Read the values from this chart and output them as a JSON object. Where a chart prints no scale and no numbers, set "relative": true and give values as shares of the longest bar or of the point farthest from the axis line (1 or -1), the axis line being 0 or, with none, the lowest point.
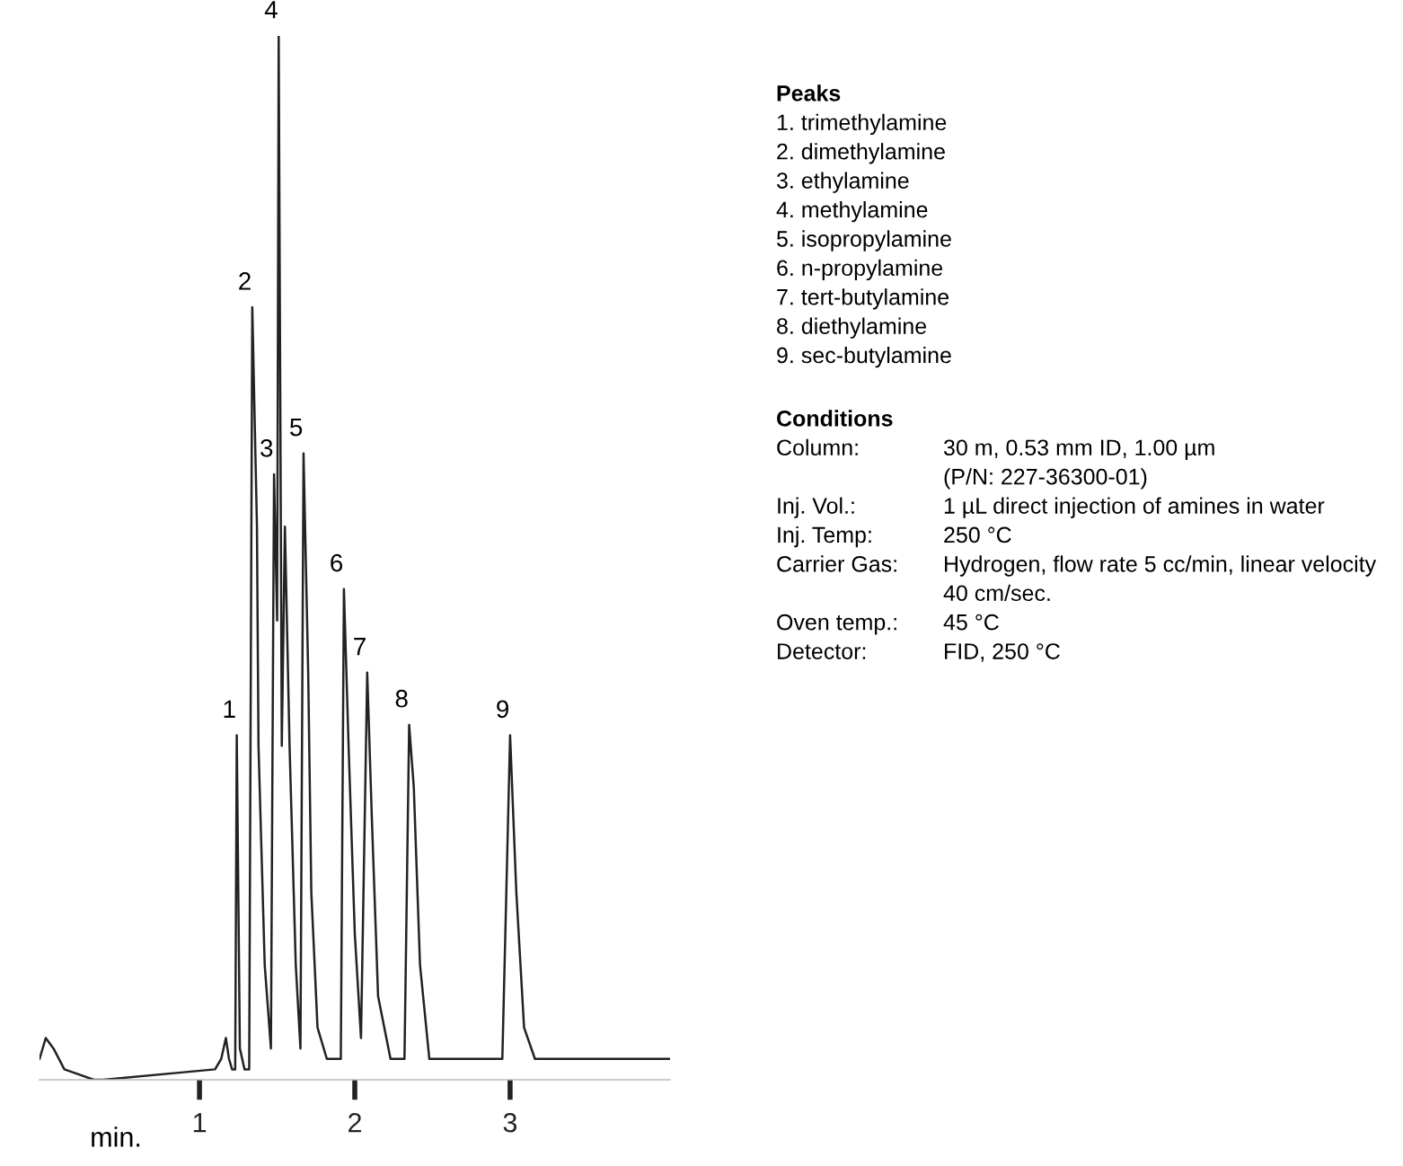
{
  "chart_data": {
    "type": "line",
    "relative": true,
    "xlabel": "min.",
    "xlim": [
      -0.03,
      4.03
    ],
    "xticks": [
      1,
      2,
      3
    ],
    "grid": false,
    "legend": false,
    "marker": "none",
    "line_style": "solid",
    "series": [
      {
        "color": "#222222",
        "x": [
          -0.03,
          0.01,
          0.06,
          0.13,
          0.32,
          0.38,
          1.1,
          1.14,
          1.17,
          1.19,
          1.21,
          1.23,
          1.24,
          1.26,
          1.29,
          1.32,
          1.34,
          1.37,
          1.38,
          1.42,
          1.46,
          1.48,
          1.5,
          1.51,
          1.53,
          1.55,
          1.58,
          1.62,
          1.65,
          1.67,
          1.7,
          1.72,
          1.76,
          1.82,
          1.91,
          1.93,
          1.96,
          2.0,
          2.04,
          2.08,
          2.11,
          2.15,
          2.23,
          2.32,
          2.35,
          2.38,
          2.42,
          2.48,
          2.59,
          2.95,
          3.0,
          3.04,
          3.09,
          3.16,
          4.03
        ],
        "values": [
          0.02,
          0.04,
          0.03,
          0.01,
          0.0,
          0.0,
          0.01,
          0.02,
          0.04,
          0.02,
          0.01,
          0.01,
          0.33,
          0.03,
          0.01,
          0.01,
          0.74,
          0.53,
          0.32,
          0.11,
          0.03,
          0.58,
          0.44,
          1.0,
          0.32,
          0.53,
          0.32,
          0.11,
          0.03,
          0.6,
          0.39,
          0.18,
          0.05,
          0.02,
          0.02,
          0.47,
          0.32,
          0.14,
          0.04,
          0.39,
          0.25,
          0.08,
          0.02,
          0.02,
          0.34,
          0.28,
          0.11,
          0.02,
          0.02,
          0.02,
          0.33,
          0.18,
          0.05,
          0.02,
          0.02
        ]
      }
    ],
    "annotations": [
      {
        "text": "1",
        "x": 1.24,
        "y": 0.33
      },
      {
        "text": "2",
        "x": 1.34,
        "y": 0.74
      },
      {
        "text": "3",
        "x": 1.48,
        "y": 0.58
      },
      {
        "text": "4",
        "x": 1.51,
        "y": 1.0
      },
      {
        "text": "5",
        "x": 1.67,
        "y": 0.6
      },
      {
        "text": "6",
        "x": 1.93,
        "y": 0.47
      },
      {
        "text": "7",
        "x": 2.08,
        "y": 0.39
      },
      {
        "text": "8",
        "x": 2.35,
        "y": 0.34
      },
      {
        "text": "9",
        "x": 3.0,
        "y": 0.33
      },
      "Peaks",
      "1. trimethylamine",
      "2. dimethylamine",
      "3. ethylamine",
      "4. methylamine",
      "5. isopropylamine",
      "6. n-propylamine",
      "7. tert-butylamine",
      "8. diethylamine",
      "9. sec-butylamine",
      "Conditions",
      "Column: 30 m, 0.53 mm ID, 1.00 µm\n(P/N: 227-36300-01)",
      "Inj. Vol.: 1 µL direct injection of amines in water",
      "Inj. Temp: 250 °C",
      "Carrier Gas: Hydrogen, flow rate 5 cc/min, linear velocity\n40 cm/sec.",
      "Oven temp.: 45 °C",
      "Detector: FID, 250 °C"
    ]
  }
}
